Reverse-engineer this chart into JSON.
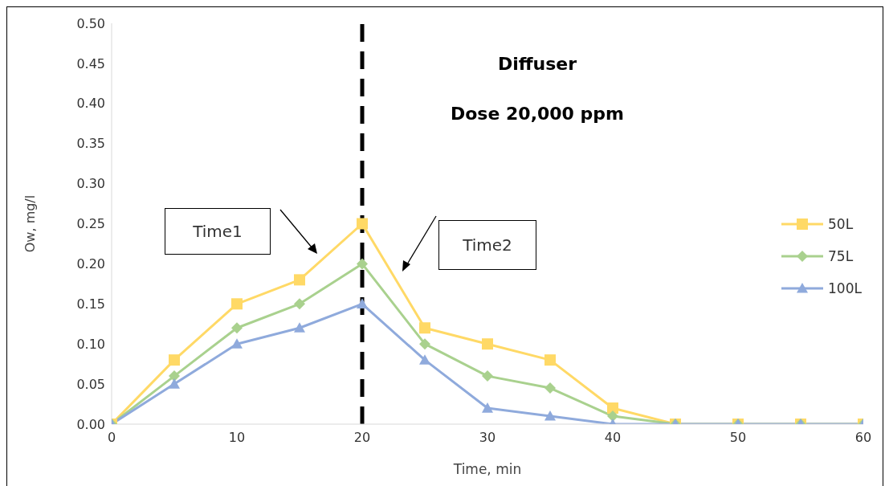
{
  "chart_data": {
    "type": "line",
    "title": "Diffuser",
    "subtitle": "Dose 20,000 ppm",
    "xlabel": "Time, min",
    "ylabel": "Ow, mg/l",
    "x": [
      0,
      5,
      10,
      15,
      20,
      25,
      30,
      35,
      40,
      45,
      50,
      55,
      60
    ],
    "series": [
      {
        "name": "50L",
        "color": "#ffd966",
        "marker": "square",
        "values": [
          0,
          0.08,
          0.15,
          0.18,
          0.25,
          0.12,
          0.1,
          0.08,
          0.02,
          0,
          0,
          0,
          0
        ]
      },
      {
        "name": "75L",
        "color": "#a9d18e",
        "marker": "diamond",
        "values": [
          0,
          0.06,
          0.12,
          0.15,
          0.2,
          0.1,
          0.06,
          0.045,
          0.01,
          0,
          0,
          0,
          0
        ]
      },
      {
        "name": "100L",
        "color": "#8faadc",
        "marker": "triangle",
        "values": [
          0,
          0.05,
          0.1,
          0.12,
          0.15,
          0.08,
          0.02,
          0.01,
          0,
          0,
          0,
          0,
          0
        ]
      }
    ],
    "xlim": [
      0,
      60
    ],
    "xticks": [
      0,
      10,
      20,
      30,
      40,
      50,
      60
    ],
    "ylim": [
      0,
      0.5
    ],
    "yticks": [
      {
        "value": 0,
        "label": "0.00"
      },
      {
        "value": 0.05,
        "label": "0.05"
      },
      {
        "value": 0.1,
        "label": "0.10"
      },
      {
        "value": 0.15,
        "label": "0.15"
      },
      {
        "value": 0.2,
        "label": "0.20"
      },
      {
        "value": 0.25,
        "label": "0.25"
      },
      {
        "value": 0.3,
        "label": "0.30"
      },
      {
        "value": 0.35,
        "label": "0.35"
      },
      {
        "value": 0.4,
        "label": "0.40"
      },
      {
        "value": 0.45,
        "label": "0.45"
      },
      {
        "value": 0.5,
        "label": "0.50"
      }
    ],
    "ref_lines": [
      {
        "axis": "x",
        "value": 20,
        "color": "#000000",
        "line_style": "dashed"
      }
    ],
    "annotations": [
      "Time1",
      "Time2"
    ],
    "grid": false,
    "legend": "right",
    "line_style": "solid"
  }
}
